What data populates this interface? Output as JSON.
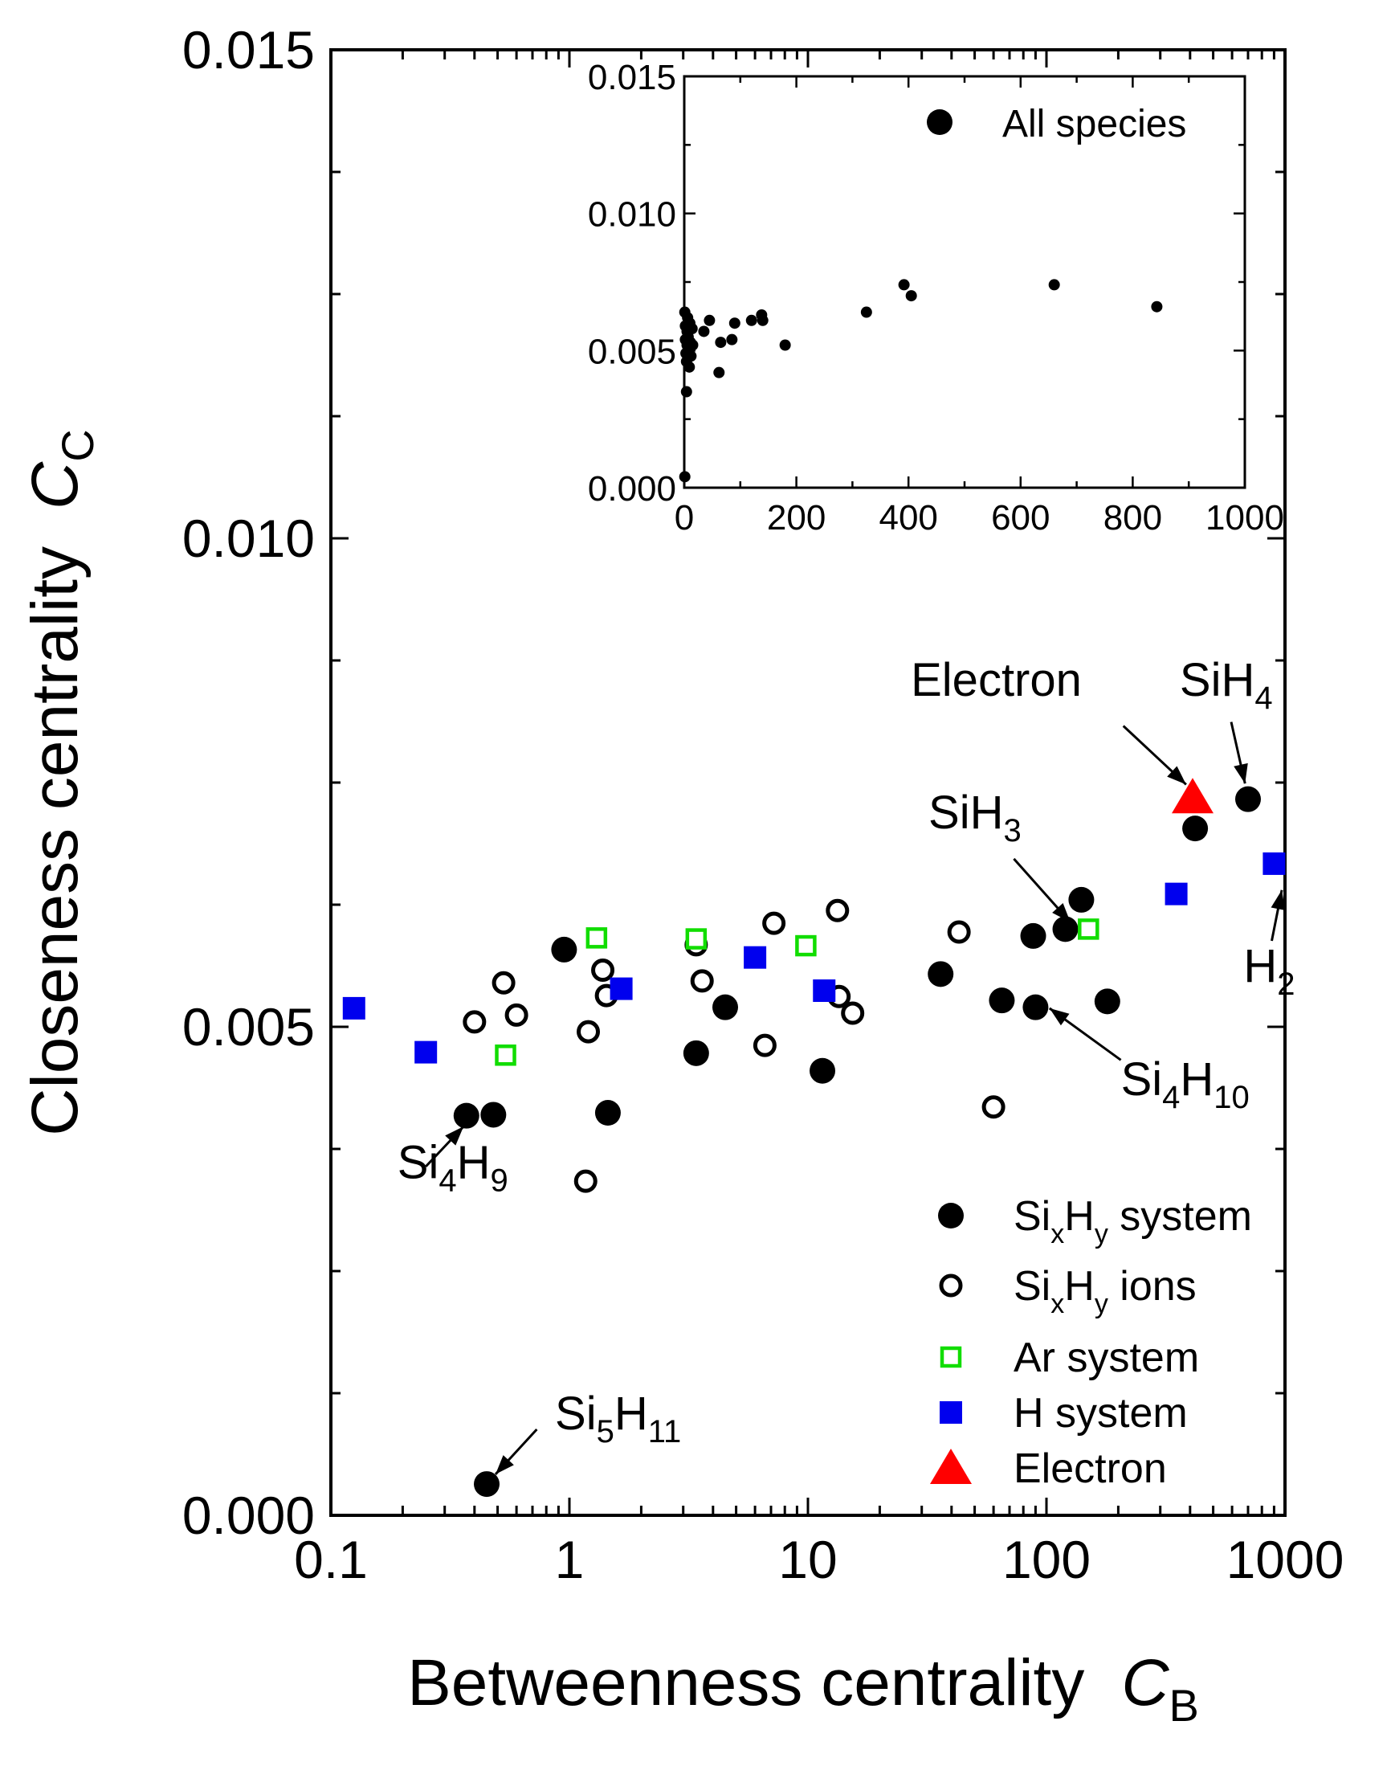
{
  "chart_data": [
    {
      "type": "scatter",
      "xscale": "log",
      "xlim": [
        0.1,
        1000
      ],
      "ylim": [
        0,
        0.015
      ],
      "xlabel": {
        "text": "Betweenness centrality",
        "symbol": "C",
        "sub": "B"
      },
      "ylabel": {
        "text": "Closeness centrality",
        "symbol": "C",
        "sub": "C"
      },
      "xticks": [
        {
          "v": 0.1,
          "label": "0.1"
        },
        {
          "v": 1,
          "label": "1"
        },
        {
          "v": 10,
          "label": "10"
        },
        {
          "v": 100,
          "label": "100"
        },
        {
          "v": 1000,
          "label": "1000"
        }
      ],
      "yticks": [
        {
          "v": 0,
          "label": "0.000"
        },
        {
          "v": 0.005,
          "label": "0.005"
        },
        {
          "v": 0.01,
          "label": "0.010"
        },
        {
          "v": 0.015,
          "label": "0.015"
        }
      ],
      "series": [
        {
          "name": "SixHy system",
          "legend": {
            "parts": [
              [
                "Si",
                ""
              ],
              [
                "x",
                "sub"
              ],
              [
                "H",
                ""
              ],
              [
                "y",
                "sub"
              ],
              [
                " system",
                ""
              ]
            ]
          },
          "marker": "circle-filled",
          "color": "#000000",
          "points": [
            [
              0.37,
              0.00409
            ],
            [
              0.48,
              0.0041
            ],
            [
              0.95,
              0.00579
            ],
            [
              1.45,
              0.00412
            ],
            [
              3.4,
              0.00473
            ],
            [
              4.5,
              0.0052
            ],
            [
              11.5,
              0.00455
            ],
            [
              36,
              0.00554
            ],
            [
              65,
              0.00527
            ],
            [
              88,
              0.00593
            ],
            [
              90,
              0.0052
            ],
            [
              120,
              0.006
            ],
            [
              140,
              0.0063
            ],
            [
              180,
              0.00526
            ],
            [
              420,
              0.00703
            ],
            [
              700,
              0.00733
            ],
            [
              0.45,
              0.00032
            ]
          ]
        },
        {
          "name": "SixHy ions",
          "legend": {
            "parts": [
              [
                "Si",
                ""
              ],
              [
                "x",
                "sub"
              ],
              [
                "H",
                ""
              ],
              [
                "y",
                "sub"
              ],
              [
                " ions",
                ""
              ]
            ]
          },
          "marker": "circle-open",
          "color": "#000000",
          "points": [
            [
              0.4,
              0.00505
            ],
            [
              0.53,
              0.00545
            ],
            [
              0.6,
              0.00512
            ],
            [
              1.2,
              0.00495
            ],
            [
              1.38,
              0.00558
            ],
            [
              1.43,
              0.00532
            ],
            [
              1.17,
              0.00342
            ],
            [
              3.4,
              0.00584
            ],
            [
              3.6,
              0.00547
            ],
            [
              7.2,
              0.00606
            ],
            [
              6.6,
              0.00481
            ],
            [
              13.3,
              0.00619
            ],
            [
              13.5,
              0.00531
            ],
            [
              15.4,
              0.00514
            ],
            [
              43,
              0.00597
            ],
            [
              60,
              0.00418
            ]
          ]
        },
        {
          "name": "Ar system",
          "legend": {
            "parts": [
              [
                "Ar system",
                ""
              ]
            ]
          },
          "marker": "square-open",
          "color": "#11dd00",
          "points": [
            [
              0.54,
              0.00471
            ],
            [
              1.3,
              0.00591
            ],
            [
              3.4,
              0.0059
            ],
            [
              9.8,
              0.00583
            ],
            [
              150,
              0.006
            ]
          ]
        },
        {
          "name": "H system",
          "legend": {
            "parts": [
              [
                "H system",
                ""
              ]
            ]
          },
          "marker": "square-filled",
          "color": "#0000ee",
          "points": [
            [
              0.125,
              0.00519
            ],
            [
              0.25,
              0.00474
            ],
            [
              1.65,
              0.00539
            ],
            [
              6,
              0.00571
            ],
            [
              11.7,
              0.00537
            ],
            [
              350,
              0.00636
            ],
            [
              900,
              0.00667
            ]
          ]
        },
        {
          "name": "Electron",
          "legend": {
            "parts": [
              [
                "Electron",
                ""
              ]
            ]
          },
          "marker": "triangle",
          "color": "#ff0000",
          "points": [
            [
              410,
              0.00735
            ]
          ]
        }
      ],
      "annotations": [
        {
          "id": "si4h9",
          "parts": [
            [
              "Si",
              ""
            ],
            [
              "4",
              "sub"
            ],
            [
              "H",
              ""
            ],
            [
              "9",
              "sub"
            ]
          ],
          "text_at": [
            0.19,
            0.00345
          ],
          "arrow_from": [
            0.25,
            0.00357
          ],
          "arrow_to": [
            0.36,
            0.00398
          ]
        },
        {
          "id": "si5h11",
          "parts": [
            [
              "Si",
              ""
            ],
            [
              "5",
              "sub"
            ],
            [
              "H",
              ""
            ],
            [
              "11",
              "sub"
            ]
          ],
          "text_at": [
            0.87,
            0.00088
          ],
          "arrow_from": [
            0.73,
            0.00088
          ],
          "arrow_to": [
            0.49,
            0.00042
          ]
        },
        {
          "id": "si4h10",
          "parts": [
            [
              "Si",
              ""
            ],
            [
              "4",
              "sub"
            ],
            [
              "H",
              ""
            ],
            [
              "10",
              "sub"
            ]
          ],
          "text_at": [
            205,
            0.0043
          ],
          "arrow_from": [
            205,
            0.00466
          ],
          "arrow_to": [
            103,
            0.00519
          ]
        },
        {
          "id": "sih3",
          "parts": [
            [
              "Si",
              ""
            ],
            [
              "H",
              ""
            ],
            [
              "3",
              "sub"
            ]
          ],
          "text_at": [
            32,
            0.00703
          ],
          "arrow_from": [
            73,
            0.00672
          ],
          "arrow_to": [
            126,
            0.00607
          ]
        },
        {
          "id": "electron",
          "parts": [
            [
              "Electron",
              ""
            ]
          ],
          "text_at": [
            27,
            0.00839
          ],
          "arrow_from": [
            210,
            0.00808
          ],
          "arrow_to": [
            385,
            0.00748
          ]
        },
        {
          "id": "sih4",
          "parts": [
            [
              "Si",
              ""
            ],
            [
              "H",
              ""
            ],
            [
              "4",
              "sub"
            ]
          ],
          "text_at": [
            362,
            0.00839
          ],
          "arrow_from": [
            595,
            0.00812
          ],
          "arrow_to": [
            680,
            0.00749
          ]
        },
        {
          "id": "h2",
          "parts": [
            [
              "H",
              ""
            ],
            [
              "2",
              "sub"
            ]
          ],
          "text_at": [
            670,
            0.00546
          ],
          "arrow_from": [
            880,
            0.00588
          ],
          "arrow_to": [
            970,
            0.0064
          ]
        }
      ]
    },
    {
      "type": "scatter",
      "inset": true,
      "xlim": [
        0,
        1000
      ],
      "ylim": [
        0,
        0.015
      ],
      "xticks": [
        {
          "v": 0,
          "label": "0"
        },
        {
          "v": 200,
          "label": "200"
        },
        {
          "v": 400,
          "label": "400"
        },
        {
          "v": 600,
          "label": "600"
        },
        {
          "v": 800,
          "label": "800"
        },
        {
          "v": 1000,
          "label": "1000"
        }
      ],
      "yticks": [
        {
          "v": 0,
          "label": "0.000"
        },
        {
          "v": 0.005,
          "label": "0.005"
        },
        {
          "v": 0.01,
          "label": "0.010"
        },
        {
          "v": 0.015,
          "label": "0.015"
        }
      ],
      "series": [
        {
          "name": "All species",
          "legend": {
            "parts": [
              [
                "All species",
                ""
              ]
            ]
          },
          "marker": "circle-filled",
          "color": "#000000",
          "points": [
            [
              1,
              0.0064
            ],
            [
              2,
              0.0059
            ],
            [
              2,
              0.0054
            ],
            [
              3,
              0.0049
            ],
            [
              4,
              0.0046
            ],
            [
              5,
              0.0052
            ],
            [
              5,
              0.0057
            ],
            [
              6,
              0.0062
            ],
            [
              7,
              0.0055
            ],
            [
              8,
              0.005
            ],
            [
              9,
              0.0044
            ],
            [
              10,
              0.006
            ],
            [
              11,
              0.0053
            ],
            [
              12,
              0.0048
            ],
            [
              14,
              0.0058
            ],
            [
              15,
              0.0052
            ],
            [
              4,
              0.0035
            ],
            [
              1,
              0.0004
            ],
            [
              35,
              0.0057
            ],
            [
              45,
              0.0061
            ],
            [
              62,
              0.0042
            ],
            [
              65,
              0.0053
            ],
            [
              85,
              0.0054
            ],
            [
              90,
              0.006
            ],
            [
              120,
              0.0061
            ],
            [
              138,
              0.0063
            ],
            [
              140,
              0.0061
            ],
            [
              180,
              0.0052
            ],
            [
              325,
              0.0064
            ],
            [
              392,
              0.0074
            ],
            [
              405,
              0.007
            ],
            [
              660,
              0.0074
            ],
            [
              843,
              0.0066
            ]
          ]
        }
      ]
    }
  ]
}
